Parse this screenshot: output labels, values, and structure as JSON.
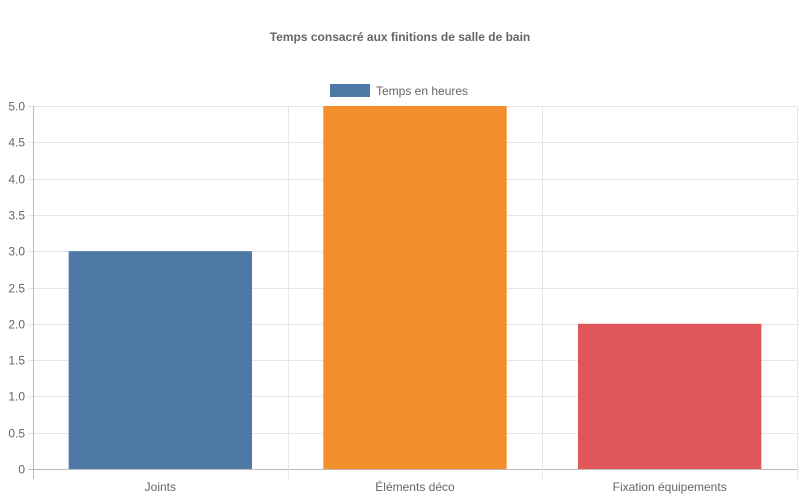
{
  "chart_data": {
    "type": "bar",
    "title": "Temps consacré aux finitions de salle de bain",
    "categories": [
      "Joints",
      "Éléments déco",
      "Fixation équipements"
    ],
    "series": [
      {
        "name": "Temps en heures",
        "values": [
          3,
          5,
          2
        ],
        "colors": [
          "#4e79a7",
          "#f28e2b",
          "#e15759"
        ]
      }
    ],
    "ylim": [
      0,
      5
    ],
    "yticks": [
      "0",
      "0.5",
      "1.0",
      "1.5",
      "2.0",
      "2.5",
      "3.0",
      "3.5",
      "4.0",
      "4.5",
      "5.0"
    ],
    "ytick_values": [
      0,
      0.5,
      1,
      1.5,
      2,
      2.5,
      3,
      3.5,
      4,
      4.5,
      5
    ],
    "xlabel": "",
    "ylabel": "",
    "grid": true,
    "legend_position": "top",
    "legend_color": "#4e79a7"
  }
}
